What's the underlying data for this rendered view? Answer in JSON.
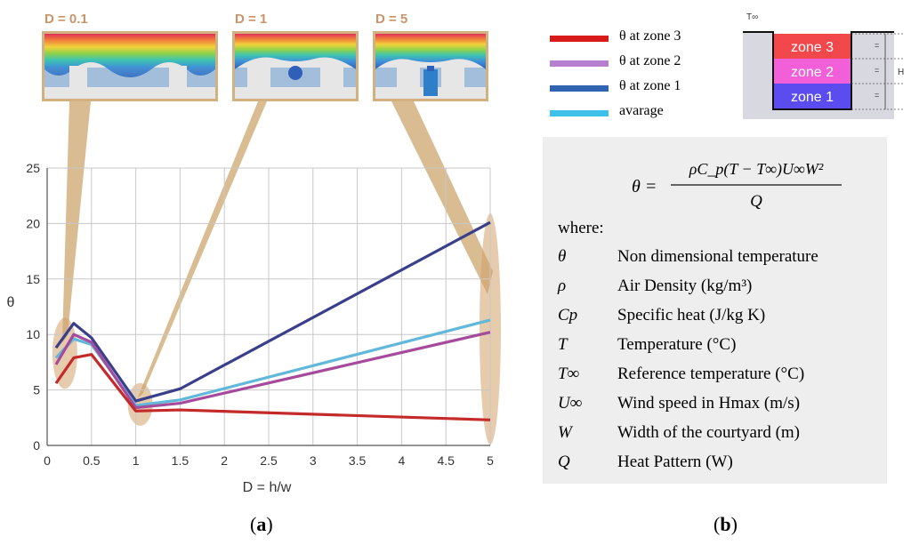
{
  "panel_a": {
    "caption_open": "(",
    "caption_letter": "a",
    "caption_close": ")",
    "thumbnails": [
      {
        "label": "D = 0.1"
      },
      {
        "label": "D = 1"
      },
      {
        "label": "D = 5"
      }
    ]
  },
  "panel_b": {
    "caption_open": "(",
    "caption_letter": "b",
    "caption_close": ")",
    "legend": [
      {
        "label": "θ at zone 3",
        "color": "#d91a1a"
      },
      {
        "label": "θ at zone 2",
        "color": "#b77fd0"
      },
      {
        "label": "θ at zone 1",
        "color": "#3164b0"
      },
      {
        "label": "avarage",
        "color": "#3fc0e8"
      }
    ],
    "schematic": {
      "top_label": "T∞",
      "zones": [
        {
          "label": "zone 3",
          "color": "#f2484c"
        },
        {
          "label": "zone 2",
          "color": "#f160d8"
        },
        {
          "label": "zone 1",
          "color": "#5b4cf0"
        }
      ],
      "height_label": "H",
      "equal_marks": [
        "=",
        "=",
        "="
      ]
    },
    "formula": {
      "lhs": "θ =",
      "numerator": "ρC_p(T − T∞)U∞W²",
      "denominator": "Q"
    },
    "where_label": "where:",
    "definitions": [
      {
        "symbol": "θ",
        "description": "Non dimensional temperature"
      },
      {
        "symbol": "ρ",
        "description": "Air Density (kg/m³)"
      },
      {
        "symbol": "Cp",
        "description": "Specific heat (J/kg K)"
      },
      {
        "symbol": "T",
        "description": "Temperature (°C)"
      },
      {
        "symbol": "T∞",
        "description": "Reference temperature (°C)"
      },
      {
        "symbol": "U∞",
        "description": "Wind speed in Hmax (m/s)"
      },
      {
        "symbol": "W",
        "description": "Width of the courtyard (m)"
      },
      {
        "symbol": "Q",
        "description": "Heat Pattern (W)"
      }
    ]
  },
  "chart_data": {
    "type": "line",
    "title": "",
    "xlabel": "D = h/w",
    "ylabel": "θ",
    "xlim": [
      0,
      5
    ],
    "ylim": [
      0,
      25
    ],
    "xticks": [
      0,
      0.5,
      1,
      1.5,
      2,
      2.5,
      3,
      3.5,
      4,
      4.5,
      5
    ],
    "xtick_labels": [
      "0",
      "0.5",
      "1",
      "1.5",
      "2",
      "2.5",
      "3",
      "3.5",
      "4",
      "4.5",
      "5"
    ],
    "yticks": [
      0,
      5,
      10,
      15,
      20,
      25
    ],
    "ytick_labels": [
      "0",
      "5",
      "10",
      "15",
      "20",
      "25"
    ],
    "grid": true,
    "highlights": [
      {
        "label": "D = 0.1",
        "x": 0.2,
        "y": 8.3
      },
      {
        "label": "D = 1",
        "x": 1.05,
        "y": 3.7
      },
      {
        "label": "D = 5",
        "x": 5.0,
        "y": 10.5
      }
    ],
    "series": [
      {
        "name": "θ at zone 1",
        "color": "#3a3f8c",
        "x": [
          0.1,
          0.3,
          0.5,
          1.0,
          1.5,
          5.0
        ],
        "y": [
          8.8,
          11.0,
          9.7,
          4.0,
          5.1,
          20.1
        ]
      },
      {
        "name": "avarage",
        "color": "#62b8d9",
        "x": [
          0.1,
          0.3,
          0.5,
          1.0,
          1.5,
          5.0
        ],
        "y": [
          7.9,
          9.6,
          9.1,
          3.6,
          4.1,
          11.3
        ]
      },
      {
        "name": "θ at zone 2",
        "color": "#a64b9c",
        "x": [
          0.1,
          0.3,
          0.5,
          1.0,
          1.5,
          5.0
        ],
        "y": [
          7.3,
          10.0,
          9.3,
          3.4,
          3.8,
          10.2
        ]
      },
      {
        "name": "θ at zone 3",
        "color": "#c42a2a",
        "x": [
          0.1,
          0.3,
          0.5,
          1.0,
          1.5,
          5.0
        ],
        "y": [
          5.6,
          7.9,
          8.2,
          3.1,
          3.2,
          2.3
        ]
      }
    ]
  }
}
